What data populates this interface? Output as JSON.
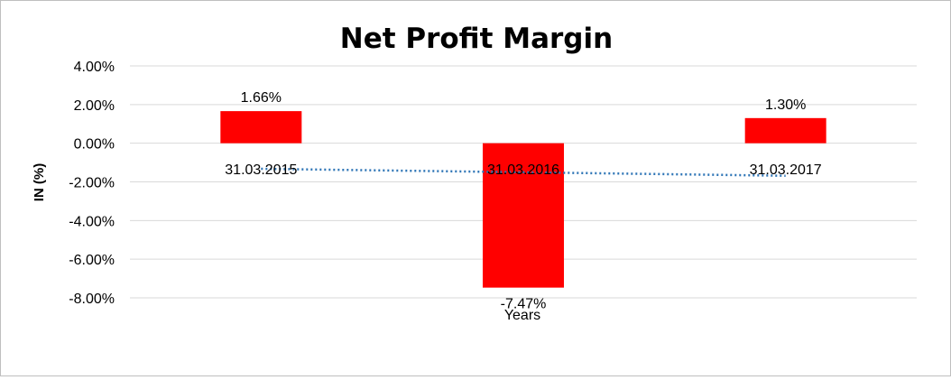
{
  "chart_data": {
    "type": "bar",
    "title": "Net Profit Margin",
    "xlabel": "Years",
    "ylabel": "IN (%)",
    "categories": [
      "31.03.2015",
      "31.03.2016",
      "31.03.2017"
    ],
    "series": [
      {
        "values": [
          1.66,
          -7.47,
          1.3
        ],
        "data_labels": [
          "1.66%",
          "-7.47%",
          "1.30%"
        ],
        "color": "#ff0000"
      }
    ],
    "trendline": {
      "type": "linear",
      "style": "dotted",
      "color": "#2e75b6"
    },
    "ylim": [
      -8,
      4
    ],
    "yticks": [
      4,
      2,
      0,
      -2,
      -4,
      -6,
      -8
    ],
    "ytick_labels": [
      "4.00%",
      "2.00%",
      "0.00%",
      "-2.00%",
      "-4.00%",
      "-6.00%",
      "-8.00%"
    ],
    "grid": true,
    "legend": "none"
  }
}
